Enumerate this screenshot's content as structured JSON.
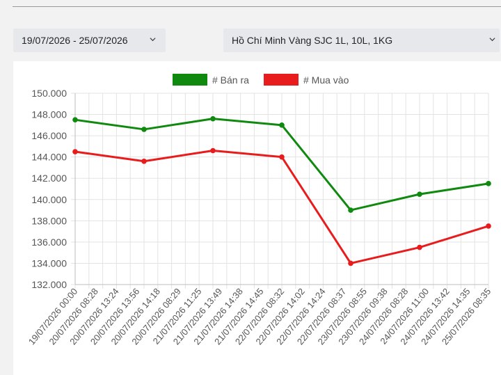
{
  "filters": {
    "date_range": "19/07/2026 - 25/07/2026",
    "location_product": "Hồ Chí Minh Vàng SJC 1L, 10L, 1KG",
    "chevron_icon": "chevron-down-icon"
  },
  "chart_data": {
    "type": "line",
    "title": "",
    "xlabel": "",
    "ylabel": "",
    "ylim": [
      132000,
      150000
    ],
    "yticks": [
      "150.000",
      "148.000",
      "146.000",
      "144.000",
      "142.000",
      "140.000",
      "138.000",
      "136.000",
      "134.000",
      "132.000"
    ],
    "ytick_values": [
      150000,
      148000,
      146000,
      144000,
      142000,
      140000,
      138000,
      136000,
      134000,
      132000
    ],
    "categories": [
      "19/07/2026 00:00",
      "20/07/2026 08:28",
      "20/07/2026 13:24",
      "20/07/2026 13:56",
      "20/07/2026 14:18",
      "20/07/2026 08:29",
      "21/07/2026 11:25",
      "21/07/2026 13:49",
      "21/07/2026 14:38",
      "21/07/2026 14:45",
      "22/07/2026 08:32",
      "22/07/2026 14:02",
      "22/07/2026 14:24",
      "22/07/2026 08:37",
      "23/07/2026 08:55",
      "23/07/2026 09:38",
      "24/07/2026 08:28",
      "24/07/2026 11:00",
      "24/07/2026 13:42",
      "24/07/2026 14:35",
      "25/07/2026 08:35"
    ],
    "grid": true,
    "legend_position": "top-center",
    "series": [
      {
        "name": "# Bán ra",
        "color": "#0f8a0f",
        "points": [
          [
            0,
            147500
          ],
          [
            5,
            146600
          ],
          [
            10,
            147600
          ],
          [
            15,
            147000
          ],
          [
            20,
            139000
          ],
          [
            25,
            140500
          ],
          [
            30,
            141500
          ]
        ]
      },
      {
        "name": "# Mua vào",
        "color": "#e81c1c",
        "points": [
          [
            0,
            144500
          ],
          [
            5,
            143600
          ],
          [
            10,
            144600
          ],
          [
            15,
            144000
          ],
          [
            20,
            134000
          ],
          [
            25,
            135500
          ],
          [
            30,
            137500
          ]
        ]
      }
    ]
  }
}
